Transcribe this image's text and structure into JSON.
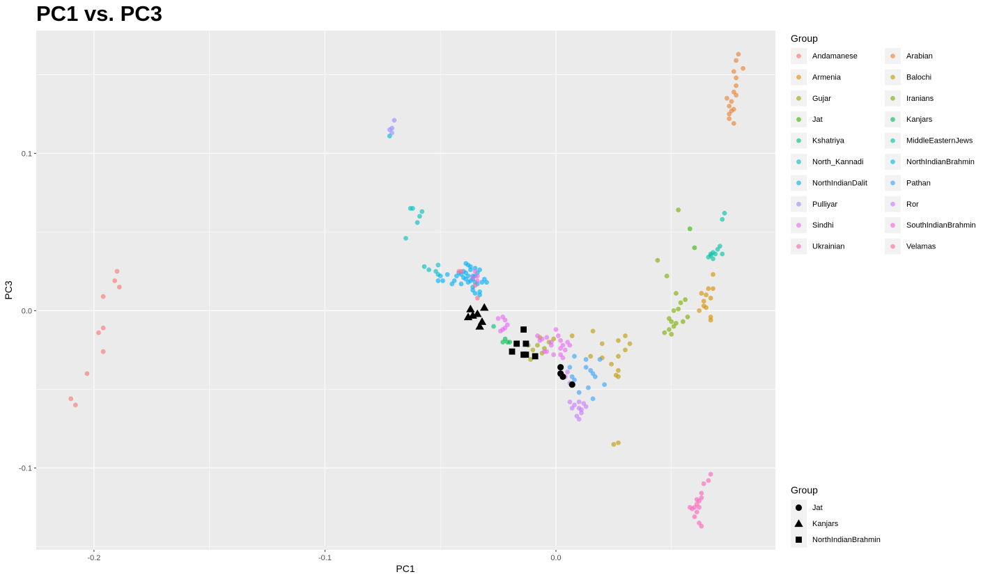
{
  "chart_data": {
    "type": "scatter",
    "title": "PC1 vs. PC3",
    "xlabel": "PC1",
    "ylabel": "PC3",
    "xlim": [
      -0.225,
      0.095
    ],
    "ylim": [
      -0.152,
      0.178
    ],
    "x_ticks": [
      {
        "value": -0.2,
        "label": "-0.2"
      },
      {
        "value": -0.1,
        "label": "-0.1"
      },
      {
        "value": 0.0,
        "label": "0.0"
      }
    ],
    "y_ticks": [
      {
        "value": -0.1,
        "label": "-0.1"
      },
      {
        "value": 0.0,
        "label": "0.0"
      },
      {
        "value": 0.1,
        "label": "0.1"
      }
    ],
    "grid": true,
    "panel_background": "#ebebeb",
    "legend_placement": "right",
    "color_legend_title": "Group",
    "shape_legend_title": "Group",
    "series": [
      {
        "name": "Andamanese",
        "color": "#F8766D",
        "points": [
          [
            -0.19,
            0.025
          ],
          [
            -0.191,
            0.019
          ],
          [
            -0.189,
            0.015
          ],
          [
            -0.196,
            0.009
          ],
          [
            -0.196,
            -0.011
          ],
          [
            -0.198,
            -0.014
          ],
          [
            -0.196,
            -0.026
          ],
          [
            -0.203,
            -0.04
          ],
          [
            -0.21,
            -0.056
          ],
          [
            -0.208,
            -0.06
          ]
        ]
      },
      {
        "name": "Arabian",
        "color": "#EA8331",
        "points": [
          [
            0.079,
            0.163
          ],
          [
            0.078,
            0.159
          ],
          [
            0.081,
            0.154
          ],
          [
            0.077,
            0.152
          ],
          [
            0.078,
            0.148
          ],
          [
            0.078,
            0.143
          ],
          [
            0.077,
            0.139
          ],
          [
            0.078,
            0.137
          ],
          [
            0.074,
            0.135
          ],
          [
            0.076,
            0.133
          ],
          [
            0.075,
            0.13
          ],
          [
            0.077,
            0.128
          ],
          [
            0.076,
            0.127
          ],
          [
            0.075,
            0.125
          ],
          [
            0.075,
            0.122
          ],
          [
            0.077,
            0.119
          ]
        ]
      },
      {
        "name": "Armenia",
        "color": "#D89000",
        "points": [
          [
            0.068,
            0.023
          ],
          [
            0.068,
            0.014
          ],
          [
            0.066,
            0.014
          ],
          [
            0.065,
            0.01
          ],
          [
            0.067,
            0.008
          ],
          [
            0.063,
            0.011
          ],
          [
            0.064,
            0.006
          ],
          [
            0.064,
            0.003
          ],
          [
            0.065,
            0.002
          ],
          [
            0.062,
            0.0
          ],
          [
            0.067,
            -0.004
          ],
          [
            0.067,
            -0.006
          ]
        ]
      },
      {
        "name": "Balochi",
        "color": "#C09B00",
        "points": [
          [
            0.007,
            -0.016
          ],
          [
            0.016,
            -0.013
          ],
          [
            0.02,
            -0.021
          ],
          [
            0.015,
            -0.029
          ],
          [
            0.02,
            -0.03
          ],
          [
            0.027,
            -0.019
          ],
          [
            0.03,
            -0.016
          ],
          [
            0.032,
            -0.021
          ],
          [
            0.03,
            -0.025
          ],
          [
            0.024,
            -0.034
          ],
          [
            0.027,
            -0.038
          ],
          [
            0.026,
            -0.041
          ],
          [
            0.027,
            -0.042
          ],
          [
            0.027,
            -0.029
          ],
          [
            0.025,
            -0.085
          ],
          [
            0.027,
            -0.084
          ]
        ]
      },
      {
        "name": "Gujar",
        "color": "#A3A500",
        "points": [
          [
            -0.008,
            -0.022
          ],
          [
            -0.005,
            -0.024
          ],
          [
            -0.01,
            -0.025
          ],
          [
            -0.009,
            -0.029
          ],
          [
            -0.011,
            -0.031
          ],
          [
            -0.006,
            -0.027
          ],
          [
            -0.003,
            -0.02
          ],
          [
            -0.001,
            -0.018
          ],
          [
            -0.007,
            -0.017
          ],
          [
            -0.012,
            -0.022
          ]
        ]
      },
      {
        "name": "Iranians",
        "color": "#7CAE00",
        "points": [
          [
            0.044,
            0.032
          ],
          [
            0.048,
            0.022
          ],
          [
            0.053,
            0.064
          ],
          [
            0.052,
            0.011
          ],
          [
            0.054,
            0.005
          ],
          [
            0.056,
            0.007
          ],
          [
            0.051,
            0.0
          ],
          [
            0.053,
            0.001
          ],
          [
            0.049,
            -0.005
          ],
          [
            0.05,
            -0.007
          ],
          [
            0.052,
            -0.008
          ],
          [
            0.055,
            -0.007
          ],
          [
            0.057,
            -0.004
          ],
          [
            0.051,
            -0.01
          ],
          [
            0.049,
            -0.012
          ],
          [
            0.047,
            -0.014
          ],
          [
            0.05,
            -0.015
          ]
        ]
      },
      {
        "name": "Jat",
        "color": "#39B600",
        "points": [
          [
            0.06,
            0.04
          ],
          [
            0.058,
            0.052
          ]
        ]
      },
      {
        "name": "Kanjars",
        "color": "#00BB4E",
        "points": [
          [
            -0.022,
            -0.018
          ],
          [
            -0.021,
            -0.02
          ],
          [
            -0.02,
            -0.02
          ],
          [
            -0.023,
            -0.02
          ]
        ]
      },
      {
        "name": "Kshatriya",
        "color": "#00BF7D",
        "points": [
          [
            -0.027,
            -0.01
          ]
        ]
      },
      {
        "name": "MiddleEasternJews",
        "color": "#00C1A3",
        "points": [
          [
            0.073,
            0.062
          ],
          [
            0.072,
            0.058
          ],
          [
            0.071,
            0.041
          ],
          [
            0.07,
            0.039
          ],
          [
            0.072,
            0.036
          ],
          [
            0.068,
            0.037
          ],
          [
            0.067,
            0.035
          ],
          [
            0.069,
            0.036
          ],
          [
            0.066,
            0.034
          ],
          [
            0.068,
            0.033
          ],
          [
            0.067,
            0.036
          ]
        ]
      },
      {
        "name": "North_Kannadi",
        "color": "#00BFC4",
        "points": [
          [
            -0.063,
            0.065
          ],
          [
            -0.062,
            0.065
          ],
          [
            -0.058,
            0.063
          ],
          [
            -0.059,
            0.06
          ],
          [
            -0.06,
            0.056
          ],
          [
            -0.065,
            0.046
          ],
          [
            -0.057,
            0.028
          ],
          [
            -0.055,
            0.026
          ],
          [
            -0.051,
            0.029
          ],
          [
            -0.052,
            0.025
          ],
          [
            -0.051,
            0.023
          ]
        ]
      },
      {
        "name": "NorthIndianBrahmin",
        "color": "#00BAE0",
        "points": [
          [
            -0.072,
            0.111
          ]
        ]
      },
      {
        "name": "NorthIndianDalit",
        "color": "#00B0F6",
        "points": [
          [
            -0.043,
            0.022
          ],
          [
            -0.04,
            0.021
          ],
          [
            -0.039,
            0.024
          ],
          [
            -0.037,
            0.026
          ],
          [
            -0.036,
            0.02
          ],
          [
            -0.038,
            0.018
          ],
          [
            -0.035,
            0.022
          ],
          [
            -0.034,
            0.017
          ],
          [
            -0.036,
            0.015
          ],
          [
            -0.033,
            0.012
          ],
          [
            -0.032,
            0.018
          ],
          [
            -0.041,
            0.017
          ],
          [
            -0.044,
            0.019
          ],
          [
            -0.047,
            0.023
          ],
          [
            -0.045,
            0.017
          ],
          [
            -0.049,
            0.019
          ],
          [
            -0.051,
            0.019
          ],
          [
            -0.05,
            0.022
          ],
          [
            -0.038,
            0.029
          ],
          [
            -0.037,
            0.028
          ],
          [
            -0.035,
            0.027
          ],
          [
            -0.033,
            0.026
          ],
          [
            -0.034,
            0.024
          ],
          [
            -0.04,
            0.025
          ],
          [
            -0.039,
            0.02
          ],
          [
            -0.031,
            0.02
          ],
          [
            -0.03,
            0.018
          ],
          [
            -0.036,
            0.013
          ],
          [
            -0.035,
            0.011
          ],
          [
            -0.033,
            0.01
          ],
          [
            -0.039,
            0.03
          ],
          [
            -0.036,
            0.022
          ],
          [
            -0.037,
            0.019
          ],
          [
            -0.041,
            0.023
          ],
          [
            -0.042,
            0.024
          ],
          [
            -0.038,
            0.022
          ],
          [
            -0.035,
            0.018
          ]
        ]
      },
      {
        "name": "Pathan",
        "color": "#35A2FF",
        "points": [
          [
            0.006,
            -0.036
          ],
          [
            0.008,
            -0.029
          ],
          [
            0.013,
            -0.031
          ],
          [
            0.013,
            -0.036
          ],
          [
            0.015,
            -0.038
          ],
          [
            0.016,
            -0.04
          ],
          [
            0.017,
            -0.042
          ],
          [
            0.019,
            -0.031
          ],
          [
            0.021,
            -0.047
          ],
          [
            0.014,
            -0.049
          ],
          [
            0.01,
            -0.052
          ],
          [
            0.016,
            -0.056
          ],
          [
            0.007,
            -0.042
          ],
          [
            0.008,
            -0.044
          ]
        ]
      },
      {
        "name": "Pulliyar",
        "color": "#9590FF",
        "points": [
          [
            -0.07,
            0.121
          ],
          [
            -0.071,
            0.116
          ],
          [
            -0.072,
            0.115
          ],
          [
            -0.071,
            0.113
          ]
        ]
      },
      {
        "name": "Ror",
        "color": "#C77CFF",
        "points": [
          [
            0.006,
            -0.058
          ],
          [
            0.008,
            -0.06
          ],
          [
            0.01,
            -0.058
          ],
          [
            0.01,
            -0.062
          ],
          [
            0.012,
            -0.059
          ],
          [
            0.013,
            -0.061
          ],
          [
            0.011,
            -0.065
          ],
          [
            0.009,
            -0.067
          ],
          [
            0.01,
            -0.069
          ],
          [
            0.011,
            -0.063
          ],
          [
            0.007,
            -0.062
          ],
          [
            0.006,
            -0.046
          ],
          [
            0.004,
            -0.042
          ],
          [
            0.005,
            -0.039
          ]
        ]
      },
      {
        "name": "Sindhi",
        "color": "#E76BF3",
        "points": [
          [
            -0.025,
            -0.005
          ],
          [
            -0.023,
            -0.004
          ],
          [
            -0.022,
            -0.006
          ],
          [
            -0.021,
            -0.009
          ],
          [
            -0.023,
            -0.012
          ],
          [
            -0.022,
            -0.011
          ],
          [
            -0.024,
            -0.013
          ],
          [
            -0.008,
            -0.016
          ],
          [
            -0.007,
            -0.019
          ],
          [
            -0.006,
            -0.018
          ],
          [
            -0.004,
            -0.017
          ],
          [
            -0.002,
            -0.02
          ],
          [
            0.0,
            -0.012
          ],
          [
            0.001,
            -0.016
          ],
          [
            0.002,
            -0.019
          ],
          [
            0.002,
            -0.024
          ],
          [
            0.003,
            -0.022
          ],
          [
            0.005,
            -0.02
          ],
          [
            0.004,
            -0.025
          ],
          [
            0.002,
            -0.028
          ],
          [
            0.003,
            -0.03
          ],
          [
            0.006,
            -0.022
          ],
          [
            -0.001,
            -0.028
          ],
          [
            -0.004,
            -0.026
          ],
          [
            -0.002,
            -0.022
          ],
          [
            -0.005,
            -0.026
          ]
        ]
      },
      {
        "name": "SouthIndianBrahmin",
        "color": "#FA62DB",
        "points": [
          [
            -0.035,
            0.025
          ],
          [
            -0.034,
            0.022
          ],
          [
            -0.036,
            0.021
          ],
          [
            -0.034,
            0.019
          ]
        ]
      },
      {
        "name": "Ukrainian",
        "color": "#FF62BC",
        "points": [
          [
            0.067,
            -0.104
          ],
          [
            0.066,
            -0.108
          ],
          [
            0.064,
            -0.11
          ],
          [
            0.063,
            -0.116
          ],
          [
            0.063,
            -0.119
          ],
          [
            0.062,
            -0.121
          ],
          [
            0.061,
            -0.12
          ],
          [
            0.061,
            -0.123
          ],
          [
            0.06,
            -0.125
          ],
          [
            0.058,
            -0.125
          ],
          [
            0.059,
            -0.126
          ],
          [
            0.062,
            -0.125
          ],
          [
            0.061,
            -0.128
          ],
          [
            0.06,
            -0.131
          ],
          [
            0.062,
            -0.135
          ],
          [
            0.063,
            -0.137
          ]
        ]
      },
      {
        "name": "Velamas",
        "color": "#FF6C91",
        "points": [
          [
            -0.041,
            0.025
          ],
          [
            -0.042,
            0.025
          ],
          [
            -0.035,
            0.016
          ],
          [
            -0.034,
            0.008
          ]
        ]
      }
    ],
    "highlight_series": [
      {
        "name": "Jat",
        "shape": "circle",
        "points": [
          [
            0.002,
            -0.036
          ],
          [
            0.002,
            -0.04
          ],
          [
            0.003,
            -0.042
          ],
          [
            0.007,
            -0.047
          ]
        ]
      },
      {
        "name": "Kanjars",
        "shape": "triangle",
        "points": [
          [
            -0.037,
            0.001
          ],
          [
            -0.036,
            -0.003
          ],
          [
            -0.038,
            -0.004
          ],
          [
            -0.034,
            -0.002
          ],
          [
            -0.033,
            -0.01
          ],
          [
            -0.031,
            0.002
          ],
          [
            -0.032,
            -0.007
          ]
        ]
      },
      {
        "name": "NorthIndianBrahmin",
        "shape": "square",
        "points": [
          [
            -0.014,
            -0.012
          ],
          [
            -0.017,
            -0.021
          ],
          [
            -0.013,
            -0.021
          ],
          [
            -0.019,
            -0.026
          ],
          [
            -0.013,
            -0.028
          ],
          [
            -0.009,
            -0.029
          ],
          [
            -0.014,
            -0.028
          ]
        ]
      }
    ]
  }
}
